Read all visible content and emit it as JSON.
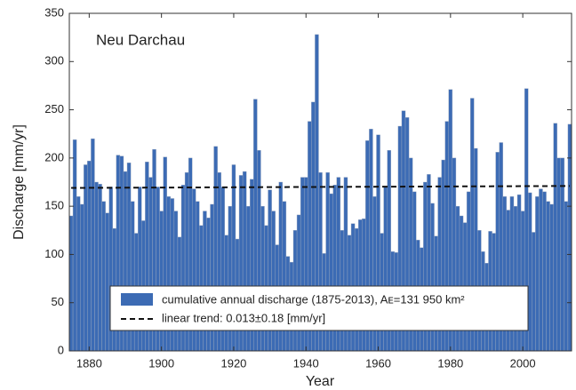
{
  "chart_data": {
    "type": "bar",
    "annotation": "Neu Darchau",
    "x_label": "Year",
    "y_label": "Discharge [mm/yr]",
    "xlim": [
      1874.5,
      2013.5
    ],
    "xticks": [
      1880,
      1900,
      1920,
      1940,
      1960,
      1980,
      2000
    ],
    "ylim": [
      0,
      350
    ],
    "yticks": [
      0,
      50,
      100,
      150,
      200,
      250,
      300,
      350
    ],
    "x": [
      1875,
      1876,
      1877,
      1878,
      1879,
      1880,
      1881,
      1882,
      1883,
      1884,
      1885,
      1886,
      1887,
      1888,
      1889,
      1890,
      1891,
      1892,
      1893,
      1894,
      1895,
      1896,
      1897,
      1898,
      1899,
      1900,
      1901,
      1902,
      1903,
      1904,
      1905,
      1906,
      1907,
      1908,
      1909,
      1910,
      1911,
      1912,
      1913,
      1914,
      1915,
      1916,
      1917,
      1918,
      1919,
      1920,
      1921,
      1922,
      1923,
      1924,
      1925,
      1926,
      1927,
      1928,
      1929,
      1930,
      1931,
      1932,
      1933,
      1934,
      1935,
      1936,
      1937,
      1938,
      1939,
      1940,
      1941,
      1942,
      1943,
      1944,
      1945,
      1946,
      1947,
      1948,
      1949,
      1950,
      1951,
      1952,
      1953,
      1954,
      1955,
      1956,
      1957,
      1958,
      1959,
      1960,
      1961,
      1962,
      1963,
      1964,
      1965,
      1966,
      1967,
      1968,
      1969,
      1970,
      1971,
      1972,
      1973,
      1974,
      1975,
      1976,
      1977,
      1978,
      1979,
      1980,
      1981,
      1982,
      1983,
      1984,
      1985,
      1986,
      1987,
      1988,
      1989,
      1990,
      1991,
      1992,
      1993,
      1994,
      1995,
      1996,
      1997,
      1998,
      1999,
      2000,
      2001,
      2002,
      2003,
      2004,
      2005,
      2006,
      2007,
      2008,
      2009,
      2010,
      2011,
      2012,
      2013
    ],
    "series": [
      {
        "name": "cumulative annual discharge (1875-2013), Aᴇ=131 950 km²",
        "color": "#3c6bb4",
        "values": [
          140,
          219,
          160,
          152,
          193,
          197,
          220,
          175,
          173,
          155,
          143,
          170,
          127,
          203,
          202,
          186,
          195,
          155,
          122,
          170,
          135,
          196,
          180,
          209,
          170,
          145,
          201,
          160,
          158,
          145,
          118,
          172,
          185,
          200,
          168,
          155,
          130,
          145,
          138,
          152,
          212,
          185,
          170,
          120,
          150,
          193,
          116,
          182,
          186,
          150,
          178,
          261,
          208,
          150,
          130,
          167,
          145,
          110,
          175,
          155,
          98,
          92,
          125,
          141,
          180,
          180,
          238,
          258,
          328,
          185,
          101,
          185,
          163,
          172,
          180,
          125,
          180,
          120,
          132,
          127,
          136,
          137,
          218,
          230,
          160,
          224,
          122,
          170,
          208,
          103,
          102,
          233,
          249,
          242,
          200,
          165,
          115,
          107,
          175,
          183,
          153,
          119,
          180,
          198,
          238,
          271,
          200,
          150,
          140,
          133,
          165,
          262,
          210,
          125,
          103,
          91,
          124,
          122,
          206,
          216,
          160,
          146,
          160,
          150,
          162,
          145,
          272,
          164,
          123,
          160,
          168,
          165,
          155,
          152,
          236,
          200,
          200,
          155,
          235
        ]
      }
    ],
    "trend": {
      "name": "linear trend: 0.013±0.18 [mm/yr]",
      "color": "#111111",
      "x": [
        1875,
        2013
      ],
      "values": [
        169,
        171
      ]
    }
  }
}
